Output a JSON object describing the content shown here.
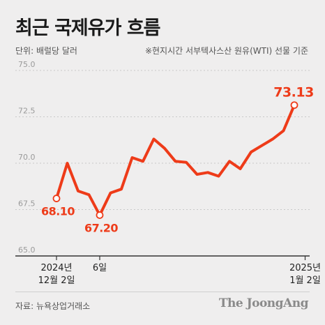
{
  "header": {
    "title": "최근 국제유가 흐름",
    "unit": "단위: 배럴당 달러",
    "basis": "※현지시간 서부텍사스산 원유(WTI) 선물 기준"
  },
  "footer": {
    "source": "자료: 뉴욕상업거래소",
    "brand": "The JoongAng"
  },
  "colors": {
    "line": "#ee3b19",
    "axis": "#333333",
    "grid": "#c8c8c8",
    "tick_text": "#9a9a9a",
    "background": "#efeeee"
  },
  "chart_data": {
    "type": "line",
    "title": "최근 국제유가 흐름",
    "ylabel": "단위: 배럴당 달러",
    "ylim": [
      65.0,
      75.0
    ],
    "yticks": [
      "75.0",
      "72.5",
      "70.0",
      "67.5",
      "65.0"
    ],
    "grid": true,
    "x_tick_labels": [
      {
        "index": 0,
        "line1": "2024년",
        "line2": "12월 2일"
      },
      {
        "index": 4,
        "line1": "6일",
        "line2": ""
      },
      {
        "index": 23,
        "line1": "2025년",
        "line2": "1월 2일"
      }
    ],
    "values": [
      68.1,
      70.0,
      68.5,
      68.3,
      67.2,
      68.4,
      68.6,
      70.3,
      70.1,
      71.3,
      70.8,
      70.1,
      70.05,
      69.4,
      69.5,
      69.3,
      70.1,
      69.7,
      70.6,
      70.95,
      71.3,
      71.75,
      73.13
    ],
    "annotations": [
      {
        "index": 0,
        "label": "68.10"
      },
      {
        "index": 4,
        "label": "67.20"
      },
      {
        "index": 22,
        "label": "73.13"
      }
    ]
  }
}
